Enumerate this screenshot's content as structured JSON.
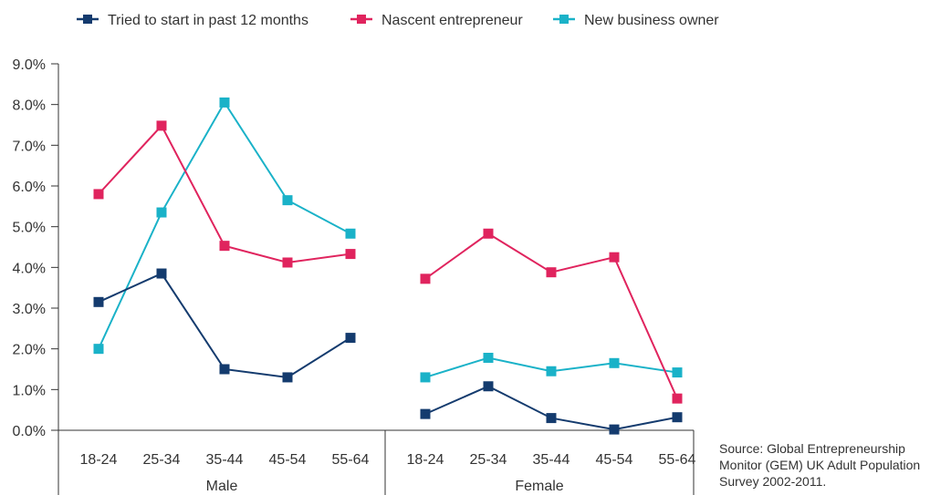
{
  "chart_data": {
    "type": "line",
    "title": "",
    "xlabel": "",
    "ylabel": "",
    "ylim": [
      0,
      9
    ],
    "y_ticks": [
      "0.0%",
      "1.0%",
      "2.0%",
      "3.0%",
      "4.0%",
      "5.0%",
      "6.0%",
      "7.0%",
      "8.0%",
      "9.0%"
    ],
    "groups": [
      {
        "name": "Male",
        "categories": [
          "18-24",
          "25-34",
          "35-44",
          "45-54",
          "55-64"
        ]
      },
      {
        "name": "Female",
        "categories": [
          "18-24",
          "25-34",
          "35-44",
          "45-54",
          "55-64"
        ]
      }
    ],
    "series": [
      {
        "name": "Tried to start in past 12 months",
        "color": "#143b6e",
        "values": [
          [
            3.15,
            3.85,
            1.5,
            1.3,
            2.27
          ],
          [
            0.4,
            1.08,
            0.3,
            0.02,
            0.32
          ]
        ]
      },
      {
        "name": "Nascent entrepreneur",
        "color": "#e0245e",
        "values": [
          [
            5.8,
            7.48,
            4.53,
            4.12,
            4.33
          ],
          [
            3.72,
            4.83,
            3.88,
            4.25,
            0.78
          ]
        ]
      },
      {
        "name": "New business owner",
        "color": "#1ab2c8",
        "values": [
          [
            2.0,
            5.35,
            8.05,
            5.65,
            4.83
          ],
          [
            1.3,
            1.78,
            1.45,
            1.65,
            1.42
          ]
        ]
      }
    ],
    "legend_position": "top-left",
    "grid": false
  },
  "source_note": {
    "line1": "Source: Global Entrepreneurship",
    "line2": "Monitor (GEM) UK Adult Population",
    "line3": "Survey 2002-2011."
  }
}
